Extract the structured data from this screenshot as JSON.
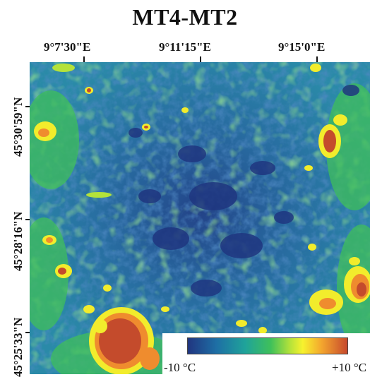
{
  "title": "MT4-MT2",
  "longitude_labels": [
    "9°7'30\"E",
    "9°11'15\"E",
    "9°15'0\"E"
  ],
  "latitude_labels": [
    "45°30'59\"N",
    "45°28'16\"N",
    "45°25'33\"N"
  ],
  "legend": {
    "min_label": "-10 °C",
    "max_label": "+10 °C",
    "colors": [
      "#203580",
      "#1e6fa5",
      "#1fa39a",
      "#3fc05a",
      "#b4e23a",
      "#f7f22e",
      "#f3a52e",
      "#c7492d"
    ]
  },
  "map": {
    "colors": {
      "cold": "#233c86",
      "cool": "#2a7fb0",
      "mid": "#2aa79a",
      "warm": "#5ec448",
      "hot_yellow": "#f2ec2c",
      "hot_orange": "#ef8c2e",
      "hot_red": "#c44b2c"
    }
  }
}
